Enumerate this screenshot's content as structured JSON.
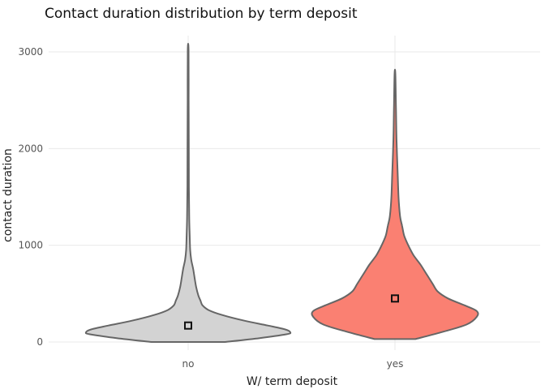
{
  "chart_data": {
    "type": "violin",
    "title": "Contact duration distribution by term deposit",
    "xlabel": "W/ term deposit",
    "ylabel": "contact duration",
    "categories": [
      "no",
      "yes"
    ],
    "ylim": [
      0,
      3000
    ],
    "y_ticks": [
      0,
      1000,
      2000,
      3000
    ],
    "grid": true,
    "series": [
      {
        "category": "no",
        "color": "#d3d3d3",
        "outline": "#666666",
        "mean": 170,
        "min": 0,
        "max": 3020,
        "density_profile": [
          [
            0,
            0.36
          ],
          [
            40,
            0.7
          ],
          [
            80,
            0.96
          ],
          [
            100,
            1.0
          ],
          [
            130,
            0.95
          ],
          [
            170,
            0.78
          ],
          [
            220,
            0.55
          ],
          [
            280,
            0.33
          ],
          [
            330,
            0.2
          ],
          [
            380,
            0.14
          ],
          [
            430,
            0.12
          ],
          [
            480,
            0.1
          ],
          [
            560,
            0.08
          ],
          [
            650,
            0.065
          ],
          [
            750,
            0.05
          ],
          [
            850,
            0.03
          ],
          [
            950,
            0.02
          ],
          [
            1100,
            0.015
          ],
          [
            1300,
            0.01
          ],
          [
            1600,
            0.007
          ],
          [
            2000,
            0.006
          ],
          [
            2500,
            0.005
          ],
          [
            3020,
            0.004
          ]
        ]
      },
      {
        "category": "yes",
        "color": "#fa8072",
        "outline": "#666666",
        "mean": 450,
        "min": 30,
        "max": 2770,
        "density_profile": [
          [
            30,
            0.2
          ],
          [
            100,
            0.45
          ],
          [
            180,
            0.7
          ],
          [
            260,
            0.8
          ],
          [
            320,
            0.8
          ],
          [
            380,
            0.68
          ],
          [
            450,
            0.52
          ],
          [
            520,
            0.42
          ],
          [
            600,
            0.37
          ],
          [
            700,
            0.31
          ],
          [
            800,
            0.25
          ],
          [
            900,
            0.18
          ],
          [
            1000,
            0.13
          ],
          [
            1100,
            0.09
          ],
          [
            1200,
            0.07
          ],
          [
            1300,
            0.05
          ],
          [
            1500,
            0.035
          ],
          [
            1800,
            0.025
          ],
          [
            2100,
            0.015
          ],
          [
            2400,
            0.01
          ],
          [
            2770,
            0.004
          ]
        ]
      }
    ]
  }
}
